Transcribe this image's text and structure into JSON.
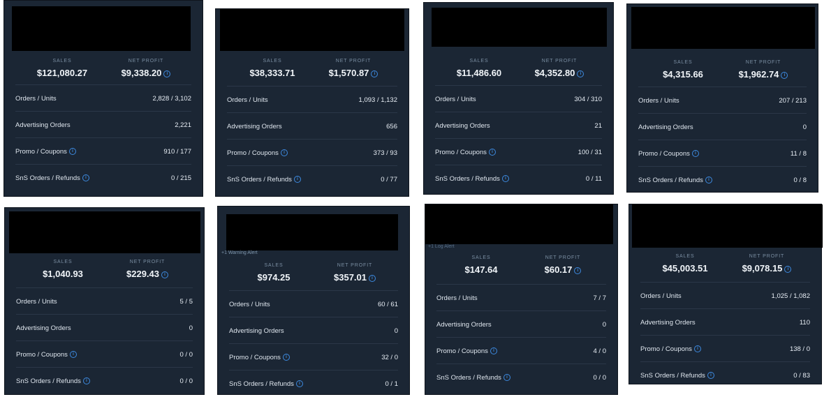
{
  "labels": {
    "sales": "SALES",
    "net_profit": "NET PROFIT",
    "orders_units": "Orders / Units",
    "advertising_orders": "Advertising Orders",
    "promo_coupons": "Promo / Coupons",
    "sns_refunds": "SnS Orders / Refunds"
  },
  "icons": {
    "info": "info-icon"
  },
  "colors": {
    "card_bg": "#1b2634",
    "info_blue": "#3d8ae0",
    "label_grey": "#7b8fa3"
  },
  "cards": [
    {
      "sales": "$121,080.27",
      "net_profit": "$9,338.20",
      "orders_units": "2,828 / 3,102",
      "advertising_orders": "2,221",
      "promo_coupons": "910 / 177",
      "sns_refunds": "0 / 215",
      "alert": ""
    },
    {
      "sales": "$38,333.71",
      "net_profit": "$1,570.87",
      "orders_units": "1,093 / 1,132",
      "advertising_orders": "656",
      "promo_coupons": "373 / 93",
      "sns_refunds": "0 / 77",
      "alert": ""
    },
    {
      "sales": "$11,486.60",
      "net_profit": "$4,352.80",
      "orders_units": "304 / 310",
      "advertising_orders": "21",
      "promo_coupons": "100 / 31",
      "sns_refunds": "0 / 11",
      "alert": ""
    },
    {
      "sales": "$4,315.66",
      "net_profit": "$1,962.74",
      "orders_units": "207 / 213",
      "advertising_orders": "0",
      "promo_coupons": "11 / 8",
      "sns_refunds": "0 / 8",
      "alert": ""
    },
    {
      "sales": "$1,040.93",
      "net_profit": "$229.43",
      "orders_units": "5 / 5",
      "advertising_orders": "0",
      "promo_coupons": "0 / 0",
      "sns_refunds": "0 / 0",
      "alert": ""
    },
    {
      "sales": "$974.25",
      "net_profit": "$357.01",
      "orders_units": "60 / 61",
      "advertising_orders": "0",
      "promo_coupons": "32 / 0",
      "sns_refunds": "0 / 1",
      "alert": "+1 Warning Alert"
    },
    {
      "sales": "$147.64",
      "net_profit": "$60.17",
      "orders_units": "7 / 7",
      "advertising_orders": "0",
      "promo_coupons": "4 / 0",
      "sns_refunds": "0 / 0",
      "alert": "+1 Log Alert"
    },
    {
      "sales": "$45,003.51",
      "net_profit": "$9,078.15",
      "orders_units": "1,025 / 1,082",
      "advertising_orders": "110",
      "promo_coupons": "138 / 0",
      "sns_refunds": "0 / 83",
      "alert": ""
    }
  ]
}
